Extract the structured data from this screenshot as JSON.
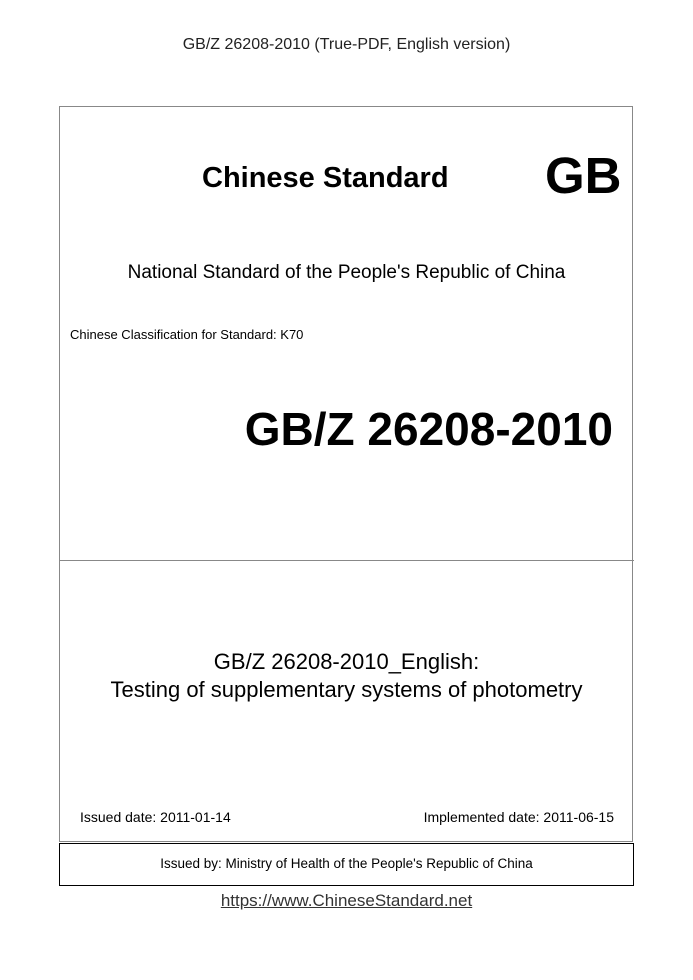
{
  "header": "GB/Z 26208-2010 (True-PDF, English version)",
  "cover": {
    "chinese_standard": "Chinese Standard",
    "gb_mark": "GB",
    "national_standard": "National Standard of the People's Republic of China",
    "classification": "Chinese Classification for Standard: K70",
    "code": "GB/Z 26208-2010",
    "title_line1": "GB/Z 26208-2010_English:",
    "title_line2": "Testing of supplementary systems of photometry",
    "issued_date": "Issued date: 2011-01-14",
    "implemented_date": "Implemented date: 2011-06-15",
    "issued_by": "Issued by: Ministry of Health of the People's Republic of China"
  },
  "footer_link": "https://www.ChineseStandard.net"
}
